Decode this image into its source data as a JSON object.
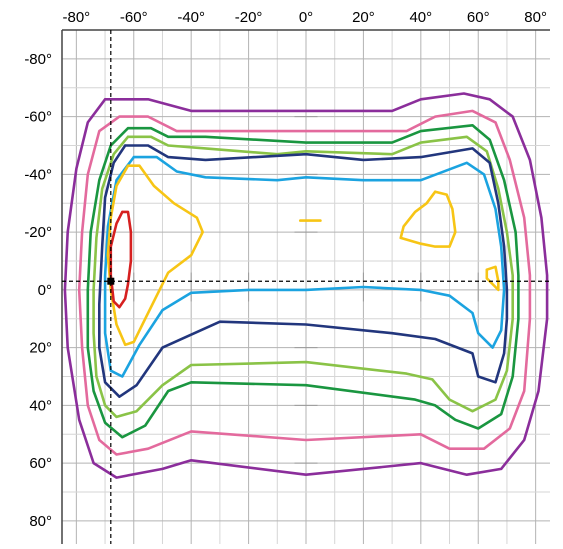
{
  "chart_data": {
    "type": "contour",
    "title": "",
    "xlabel": "",
    "ylabel": "",
    "xlim": [
      -85,
      85
    ],
    "ylim": [
      -90,
      88
    ],
    "x_ticks": [
      {
        "value": -80,
        "label": "-80°"
      },
      {
        "value": -60,
        "label": "-60°"
      },
      {
        "value": -40,
        "label": "-40°"
      },
      {
        "value": -20,
        "label": "-20°"
      },
      {
        "value": 0,
        "label": "0°"
      },
      {
        "value": 20,
        "label": "20°"
      },
      {
        "value": 40,
        "label": "40°"
      },
      {
        "value": 60,
        "label": "60°"
      },
      {
        "value": 80,
        "label": "80°"
      }
    ],
    "y_ticks": [
      {
        "value": -80,
        "label": "-80°"
      },
      {
        "value": -60,
        "label": "-60°"
      },
      {
        "value": -40,
        "label": "-40°"
      },
      {
        "value": -20,
        "label": "-20°"
      },
      {
        "value": 0,
        "label": "0°"
      },
      {
        "value": 20,
        "label": "20°"
      },
      {
        "value": 40,
        "label": "40°"
      },
      {
        "value": 60,
        "label": "60°"
      },
      {
        "value": 80,
        "label": "80°"
      }
    ],
    "grid": true,
    "grid_step": 10,
    "reference_lines": {
      "x": -68,
      "y": -3
    },
    "marker": {
      "x": -68,
      "y": -3,
      "color": "#000000"
    },
    "contours": [
      {
        "color": "#8b2e9b",
        "points": [
          [
            -70,
            -66
          ],
          [
            -55,
            -66
          ],
          [
            -40,
            -62
          ],
          [
            0,
            -62
          ],
          [
            30,
            -62
          ],
          [
            40,
            -66
          ],
          [
            55,
            -68
          ],
          [
            64,
            -66
          ],
          [
            72,
            -60
          ],
          [
            78,
            -45
          ],
          [
            82,
            -25
          ],
          [
            84,
            -5
          ],
          [
            84,
            10
          ],
          [
            81,
            35
          ],
          [
            76,
            52
          ],
          [
            68,
            62
          ],
          [
            56,
            64
          ],
          [
            40,
            60
          ],
          [
            0,
            64
          ],
          [
            -40,
            59
          ],
          [
            -50,
            62
          ],
          [
            -66,
            65
          ],
          [
            -74,
            60
          ],
          [
            -79,
            45
          ],
          [
            -83,
            20
          ],
          [
            -84,
            0
          ],
          [
            -83,
            -20
          ],
          [
            -80,
            -42
          ],
          [
            -76,
            -58
          ],
          [
            -70,
            -66
          ]
        ]
      },
      {
        "color": "#e36a9d",
        "points": [
          [
            -65,
            -60
          ],
          [
            -55,
            -60
          ],
          [
            -45,
            -55
          ],
          [
            0,
            -55
          ],
          [
            35,
            -55
          ],
          [
            45,
            -60
          ],
          [
            58,
            -62
          ],
          [
            66,
            -58
          ],
          [
            71,
            -45
          ],
          [
            76,
            -25
          ],
          [
            78,
            -5
          ],
          [
            78,
            10
          ],
          [
            76,
            35
          ],
          [
            71,
            48
          ],
          [
            62,
            55
          ],
          [
            50,
            55
          ],
          [
            40,
            50
          ],
          [
            0,
            52
          ],
          [
            -40,
            49
          ],
          [
            -55,
            55
          ],
          [
            -66,
            57
          ],
          [
            -72,
            52
          ],
          [
            -76,
            40
          ],
          [
            -78,
            20
          ],
          [
            -79,
            0
          ],
          [
            -78,
            -20
          ],
          [
            -76,
            -40
          ],
          [
            -72,
            -55
          ],
          [
            -65,
            -60
          ]
        ]
      },
      {
        "color": "#1a9640",
        "points": [
          [
            -62,
            -56
          ],
          [
            -54,
            -56
          ],
          [
            -48,
            -53
          ],
          [
            -35,
            -53
          ],
          [
            0,
            -51
          ],
          [
            30,
            -51
          ],
          [
            40,
            -55
          ],
          [
            58,
            -57
          ],
          [
            64,
            -52
          ],
          [
            69,
            -38
          ],
          [
            73,
            -20
          ],
          [
            74,
            -5
          ],
          [
            74,
            10
          ],
          [
            72,
            30
          ],
          [
            68,
            43
          ],
          [
            60,
            48
          ],
          [
            52,
            45
          ],
          [
            45,
            40
          ],
          [
            38,
            38
          ],
          [
            0,
            33
          ],
          [
            -40,
            32
          ],
          [
            -48,
            35
          ],
          [
            -56,
            47
          ],
          [
            -64,
            51
          ],
          [
            -70,
            46
          ],
          [
            -74,
            35
          ],
          [
            -76,
            20
          ],
          [
            -76,
            0
          ],
          [
            -75,
            -20
          ],
          [
            -72,
            -38
          ],
          [
            -68,
            -50
          ],
          [
            -62,
            -56
          ]
        ]
      },
      {
        "color": "#8ac347",
        "points": [
          [
            -62,
            -53
          ],
          [
            -54,
            -53
          ],
          [
            -48,
            -50
          ],
          [
            -35,
            -49
          ],
          [
            -10,
            -47
          ],
          [
            0,
            -48
          ],
          [
            30,
            -47
          ],
          [
            40,
            -51
          ],
          [
            56,
            -53
          ],
          [
            63,
            -48
          ],
          [
            67,
            -35
          ],
          [
            70,
            -20
          ],
          [
            72,
            -5
          ],
          [
            72,
            10
          ],
          [
            70,
            28
          ],
          [
            66,
            38
          ],
          [
            58,
            42
          ],
          [
            50,
            38
          ],
          [
            44,
            31
          ],
          [
            35,
            29
          ],
          [
            0,
            25
          ],
          [
            -40,
            26
          ],
          [
            -50,
            33
          ],
          [
            -59,
            42
          ],
          [
            -66,
            44
          ],
          [
            -70,
            40
          ],
          [
            -73,
            30
          ],
          [
            -74,
            15
          ],
          [
            -74,
            0
          ],
          [
            -73,
            -18
          ],
          [
            -71,
            -35
          ],
          [
            -67,
            -47
          ],
          [
            -62,
            -53
          ]
        ]
      },
      {
        "color": "#22367d",
        "points": [
          [
            -63,
            -50
          ],
          [
            -55,
            -50
          ],
          [
            -48,
            -46
          ],
          [
            -35,
            -45
          ],
          [
            0,
            -47
          ],
          [
            20,
            -45
          ],
          [
            40,
            -46
          ],
          [
            58,
            -49
          ],
          [
            64,
            -44
          ],
          [
            67,
            -30
          ],
          [
            69,
            -15
          ],
          [
            70,
            0
          ],
          [
            70,
            10
          ],
          [
            69,
            22
          ],
          [
            66,
            32
          ],
          [
            60,
            30
          ],
          [
            58,
            22
          ],
          [
            45,
            17
          ],
          [
            30,
            15
          ],
          [
            0,
            12
          ],
          [
            -30,
            11
          ],
          [
            -50,
            20
          ],
          [
            -59,
            33
          ],
          [
            -65,
            37
          ],
          [
            -70,
            32
          ],
          [
            -72,
            20
          ],
          [
            -72,
            5
          ],
          [
            -71,
            -15
          ],
          [
            -70,
            -32
          ],
          [
            -67,
            -44
          ],
          [
            -63,
            -50
          ]
        ]
      },
      {
        "color": "#1ba3e0",
        "points": [
          [
            -60,
            -46
          ],
          [
            -52,
            -46
          ],
          [
            -45,
            -41
          ],
          [
            -35,
            -39
          ],
          [
            -10,
            -38
          ],
          [
            0,
            -39
          ],
          [
            20,
            -38
          ],
          [
            40,
            -38
          ],
          [
            56,
            -44
          ],
          [
            62,
            -40
          ],
          [
            66,
            -28
          ],
          [
            68,
            -15
          ],
          [
            69,
            0
          ],
          [
            68,
            14
          ],
          [
            65,
            20
          ],
          [
            60,
            15
          ],
          [
            58,
            8
          ],
          [
            50,
            2
          ],
          [
            40,
            0
          ],
          [
            20,
            -1
          ],
          [
            0,
            0
          ],
          [
            -20,
            0
          ],
          [
            -40,
            1
          ],
          [
            -50,
            7
          ],
          [
            -58,
            19
          ],
          [
            -64,
            30
          ],
          [
            -68,
            28
          ],
          [
            -70,
            15
          ],
          [
            -70,
            -5
          ],
          [
            -69,
            -22
          ],
          [
            -66,
            -38
          ],
          [
            -60,
            -46
          ]
        ]
      },
      {
        "color": "#f7c515",
        "points": [
          [
            -62,
            -43
          ],
          [
            -58,
            -43
          ],
          [
            -53,
            -36
          ],
          [
            -46,
            -30
          ],
          [
            -38,
            -25
          ],
          [
            -36,
            -20
          ],
          [
            -40,
            -12
          ],
          [
            -48,
            -6
          ],
          [
            -52,
            2
          ],
          [
            -56,
            10
          ],
          [
            -60,
            18
          ],
          [
            -63,
            19
          ],
          [
            -66,
            12
          ],
          [
            -68,
            0
          ],
          [
            -69,
            -12
          ],
          [
            -68,
            -25
          ],
          [
            -66,
            -36
          ],
          [
            -62,
            -43
          ]
        ]
      },
      {
        "color": "#f7c515",
        "points": [
          [
            45,
            -34
          ],
          [
            49,
            -33
          ],
          [
            51,
            -28
          ],
          [
            52,
            -20
          ],
          [
            50,
            -15
          ],
          [
            45,
            -15
          ],
          [
            40,
            -16
          ],
          [
            33,
            -18
          ],
          [
            34,
            -22
          ],
          [
            38,
            -27
          ],
          [
            42,
            -30
          ],
          [
            45,
            -34
          ]
        ]
      },
      {
        "color": "#f7c515",
        "points": [
          [
            63,
            -7
          ],
          [
            66,
            -8
          ],
          [
            67,
            -3
          ],
          [
            67,
            0
          ],
          [
            65,
            -2
          ],
          [
            63,
            -4
          ],
          [
            63,
            -7
          ]
        ]
      },
      {
        "color": "#f7c515",
        "points": [
          [
            -2,
            -24
          ],
          [
            5,
            -24
          ]
        ]
      },
      {
        "color": "#d62020",
        "points": [
          [
            -64,
            -27
          ],
          [
            -62,
            -27
          ],
          [
            -61,
            -20
          ],
          [
            -61,
            -10
          ],
          [
            -62,
            -2
          ],
          [
            -63,
            3
          ],
          [
            -65,
            6
          ],
          [
            -67,
            4
          ],
          [
            -68,
            -5
          ],
          [
            -68,
            -15
          ],
          [
            -66,
            -23
          ],
          [
            -64,
            -27
          ]
        ]
      }
    ]
  }
}
